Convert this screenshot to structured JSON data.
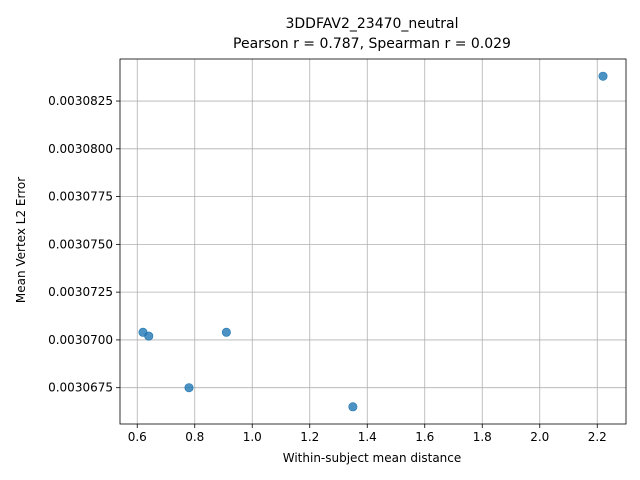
{
  "chart_data": {
    "type": "scatter",
    "title": "3DDFAV2_23470_neutral",
    "subtitle": "Pearson r = 0.787, Spearman r = 0.029",
    "xlabel": "Within-subject mean distance",
    "ylabel": "Mean Vertex L2 Error",
    "xlim": [
      0.54,
      2.3
    ],
    "ylim": [
      0.0030656,
      0.0030847
    ],
    "xticks": [
      "0.6",
      "0.8",
      "1.0",
      "1.2",
      "1.4",
      "1.6",
      "1.8",
      "2.0",
      "2.2"
    ],
    "yticks": [
      "0.0030675",
      "0.0030700",
      "0.0030725",
      "0.0030750",
      "0.0030775",
      "0.0030800",
      "0.0030825"
    ],
    "grid": true,
    "marker_color": "#1f77b4",
    "points": [
      {
        "x": 0.62,
        "y": 0.0030704
      },
      {
        "x": 0.64,
        "y": 0.0030702
      },
      {
        "x": 0.78,
        "y": 0.0030675
      },
      {
        "x": 0.91,
        "y": 0.0030704
      },
      {
        "x": 1.35,
        "y": 0.0030665
      },
      {
        "x": 2.22,
        "y": 0.0030838
      }
    ]
  }
}
